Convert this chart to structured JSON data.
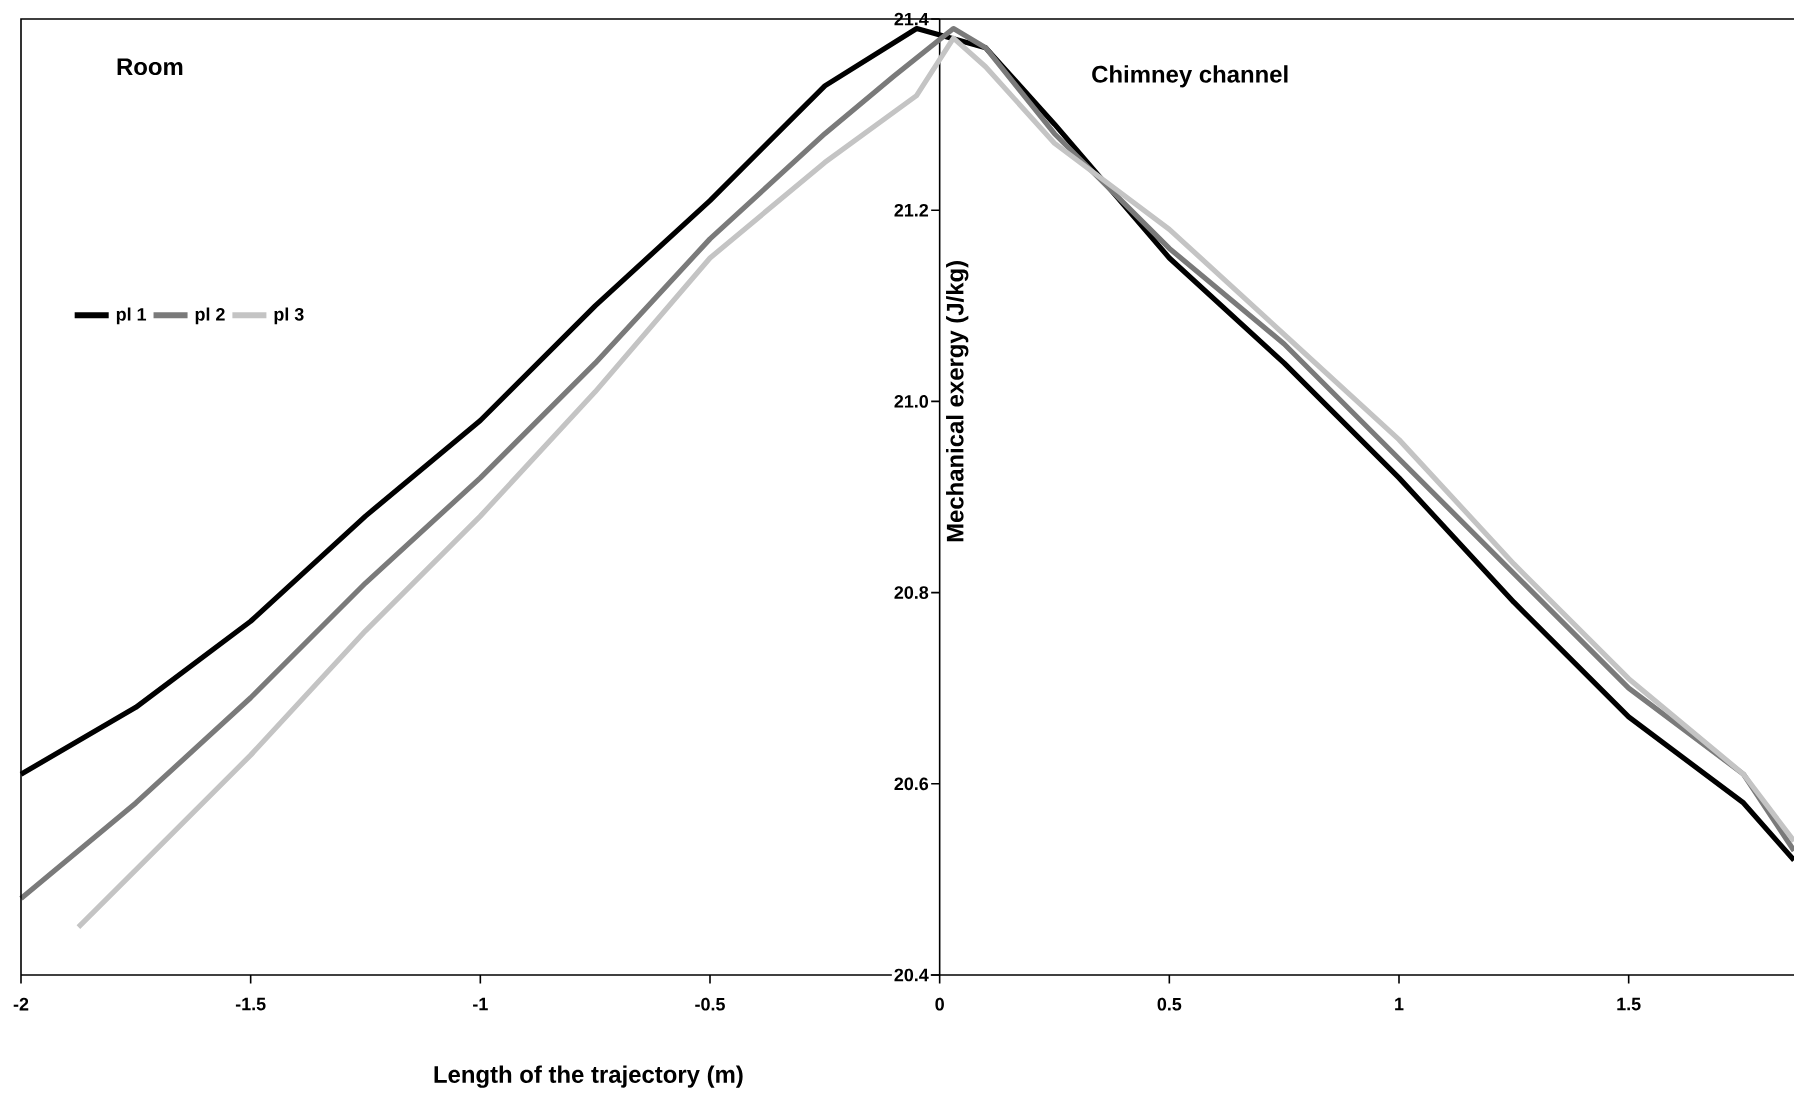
{
  "chart_data": {
    "type": "line",
    "xlabel": "Length of the trajectory (m)",
    "ylabel": "Mechanical exergy (J/kg)",
    "annotations": [
      "Room",
      "Chimney channel"
    ],
    "xlim": [
      -2,
      1.86
    ],
    "ylim": [
      20.4,
      21.4
    ],
    "xticks": [
      -2,
      -1.5,
      -1,
      -0.5,
      0,
      0.5,
      1,
      1.5
    ],
    "yticks": [
      20.4,
      20.6,
      20.8,
      {
        "value": 21,
        "label": "21.0"
      },
      21.2,
      21.4
    ],
    "legend": "left",
    "grid": false,
    "marker": "none",
    "line_style": "solid",
    "series": [
      {
        "name": "pl 1",
        "color": "#000000",
        "x": [
          -2,
          -1.75,
          -1.5,
          -1.25,
          -1,
          -0.75,
          -0.5,
          -0.25,
          -0.05,
          0.1,
          0.25,
          0.5,
          0.75,
          1,
          1.25,
          1.5,
          1.75,
          1.86
        ],
        "values": [
          20.61,
          20.68,
          20.77,
          20.88,
          20.98,
          21.1,
          21.21,
          21.33,
          21.39,
          21.37,
          21.29,
          21.15,
          21.04,
          20.92,
          20.79,
          20.67,
          20.58,
          20.52
        ]
      },
      {
        "name": "pl 2",
        "color": "#7a7a7a",
        "x": [
          -2,
          -1.75,
          -1.5,
          -1.25,
          -1,
          -0.75,
          -0.5,
          -0.25,
          -0.1,
          0.03,
          0.1,
          0.25,
          0.5,
          0.75,
          1,
          1.25,
          1.5,
          1.75,
          1.86
        ],
        "values": [
          20.48,
          20.58,
          20.69,
          20.81,
          20.92,
          21.04,
          21.17,
          21.28,
          21.34,
          21.39,
          21.37,
          21.28,
          21.16,
          21.06,
          20.94,
          20.82,
          20.7,
          20.61,
          20.53
        ]
      },
      {
        "name": "pl 3",
        "color": "#c4c4c4",
        "x": [
          -1.875,
          -1.75,
          -1.5,
          -1.25,
          -1,
          -0.75,
          -0.5,
          -0.25,
          -0.05,
          0.03,
          0.1,
          0.25,
          0.5,
          0.75,
          1,
          1.25,
          1.5,
          1.75,
          1.86
        ],
        "values": [
          20.45,
          20.51,
          20.63,
          20.76,
          20.88,
          21.01,
          21.15,
          21.25,
          21.32,
          21.38,
          21.35,
          21.27,
          21.18,
          21.07,
          20.96,
          20.83,
          20.71,
          20.61,
          20.54
        ]
      }
    ]
  }
}
